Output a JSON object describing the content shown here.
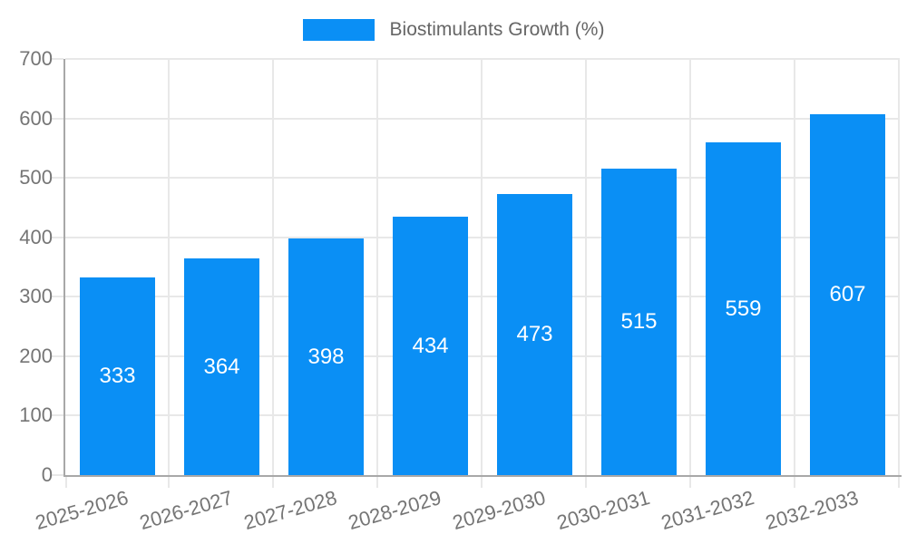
{
  "chart_data": {
    "type": "bar",
    "title": "",
    "legend": {
      "label": "Biostimulants Growth (%)",
      "position": "top"
    },
    "categories": [
      "2025-2026",
      "2026-2027",
      "2027-2028",
      "2028-2029",
      "2029-2030",
      "2030-2031",
      "2031-2032",
      "2032-2033"
    ],
    "series": [
      {
        "name": "Biostimulants Growth (%)",
        "values": [
          333,
          364,
          398,
          434,
          473,
          515,
          559,
          607
        ]
      }
    ],
    "value_labels": [
      "333",
      "364",
      "398",
      "434",
      "473",
      "515",
      "559",
      "607"
    ],
    "xlabel": "",
    "ylabel": "",
    "ylim": [
      0,
      700
    ],
    "yticks": [
      0,
      100,
      200,
      300,
      400,
      500,
      600,
      700
    ],
    "ytick_labels": [
      "0",
      "100",
      "200",
      "300",
      "400",
      "500",
      "600",
      "700"
    ],
    "grid": true,
    "colors": {
      "bar": "#0a8ff5",
      "value_label": "#ffffff",
      "axis_text": "#757575",
      "legend_text": "#666666",
      "gridline": "#e8e8e8",
      "axis_line": "#a8a8a8",
      "background": "#ffffff"
    }
  }
}
